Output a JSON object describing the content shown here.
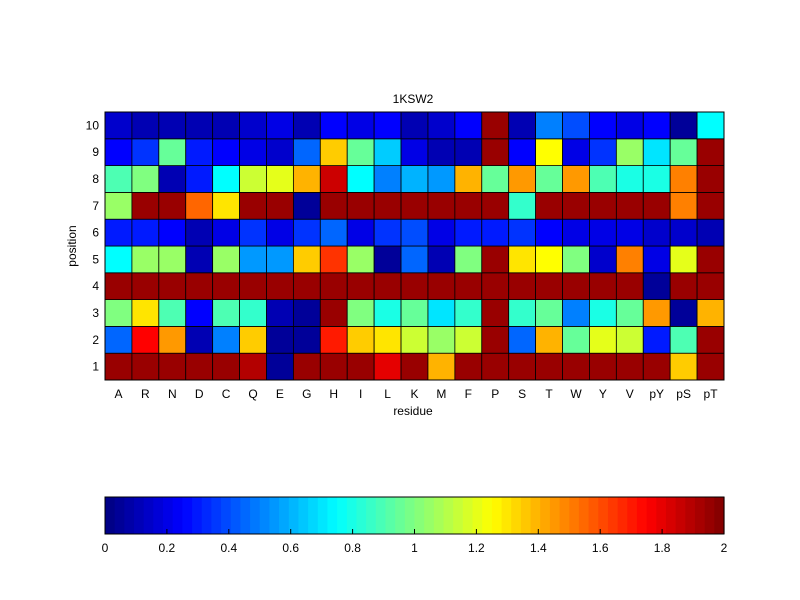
{
  "chart_data": {
    "type": "heatmap",
    "title": "1KSW2",
    "xlabel": "residue",
    "ylabel": "position",
    "colormap": "jet",
    "clim": [
      0,
      2
    ],
    "x_categories": [
      "A",
      "R",
      "N",
      "D",
      "C",
      "Q",
      "E",
      "G",
      "H",
      "I",
      "L",
      "K",
      "M",
      "F",
      "P",
      "S",
      "T",
      "W",
      "Y",
      "V",
      "pY",
      "pS",
      "pT"
    ],
    "y_categories": [
      "1",
      "2",
      "3",
      "4",
      "5",
      "6",
      "7",
      "8",
      "9",
      "10"
    ],
    "values": [
      [
        1.95,
        1.95,
        1.95,
        1.95,
        1.95,
        1.9,
        0.05,
        1.95,
        1.95,
        1.95,
        1.8,
        1.95,
        1.4,
        1.95,
        1.95,
        1.95,
        1.95,
        1.95,
        1.95,
        1.95,
        1.95,
        1.35,
        1.95
      ],
      [
        0.45,
        1.75,
        1.45,
        0.1,
        0.5,
        1.35,
        0.05,
        0.05,
        1.7,
        1.35,
        1.3,
        1.15,
        1.05,
        1.15,
        1.95,
        0.45,
        1.4,
        0.95,
        1.2,
        1.15,
        0.3,
        0.9,
        1.95
      ],
      [
        1.0,
        1.3,
        0.9,
        0.25,
        0.9,
        0.85,
        0.1,
        0.05,
        1.95,
        1.0,
        0.8,
        0.95,
        0.7,
        0.85,
        1.95,
        0.85,
        0.95,
        0.5,
        0.8,
        0.95,
        1.45,
        0.05,
        1.4
      ],
      [
        1.95,
        1.95,
        1.95,
        1.95,
        1.95,
        1.95,
        1.95,
        1.95,
        1.95,
        1.95,
        1.95,
        1.95,
        1.95,
        1.95,
        1.95,
        1.95,
        1.95,
        1.95,
        1.95,
        1.95,
        0.05,
        1.95,
        1.95
      ],
      [
        0.75,
        1.05,
        1.05,
        0.1,
        1.05,
        0.55,
        0.55,
        1.35,
        1.65,
        1.05,
        0.05,
        0.45,
        0.1,
        1.0,
        1.95,
        1.3,
        1.25,
        1.0,
        0.15,
        1.5,
        0.2,
        1.2,
        1.95
      ],
      [
        0.3,
        0.3,
        0.25,
        0.1,
        0.2,
        0.35,
        0.2,
        0.35,
        0.45,
        0.2,
        0.35,
        0.4,
        0.2,
        0.3,
        0.3,
        0.35,
        0.25,
        0.2,
        0.2,
        0.2,
        0.15,
        0.15,
        0.1
      ],
      [
        1.05,
        1.95,
        1.95,
        1.55,
        1.3,
        1.95,
        1.95,
        0.05,
        1.95,
        1.95,
        1.95,
        1.95,
        1.95,
        1.95,
        1.95,
        0.85,
        1.95,
        1.95,
        1.95,
        1.95,
        1.95,
        1.5,
        1.95
      ],
      [
        0.9,
        1.0,
        0.1,
        0.3,
        0.75,
        1.15,
        1.2,
        1.4,
        1.85,
        0.75,
        0.5,
        0.6,
        0.55,
        1.4,
        0.95,
        1.45,
        0.95,
        1.45,
        0.9,
        0.8,
        0.8,
        1.5,
        1.95
      ],
      [
        0.25,
        0.35,
        0.95,
        0.3,
        0.25,
        0.2,
        0.15,
        0.45,
        1.35,
        0.95,
        0.65,
        0.2,
        0.1,
        0.1,
        1.95,
        0.25,
        1.25,
        0.2,
        0.35,
        1.05,
        0.7,
        0.95,
        1.95
      ],
      [
        0.15,
        0.1,
        0.1,
        0.1,
        0.1,
        0.15,
        0.2,
        0.1,
        0.25,
        0.2,
        0.25,
        0.1,
        0.15,
        0.25,
        1.95,
        0.1,
        0.5,
        0.4,
        0.25,
        0.2,
        0.25,
        0.05,
        0.75
      ]
    ],
    "colorbar": {
      "orientation": "horizontal",
      "ticks": [
        "0",
        "0.2",
        "0.4",
        "0.6",
        "0.8",
        "1",
        "1.2",
        "1.4",
        "1.6",
        "1.8",
        "2"
      ]
    }
  }
}
